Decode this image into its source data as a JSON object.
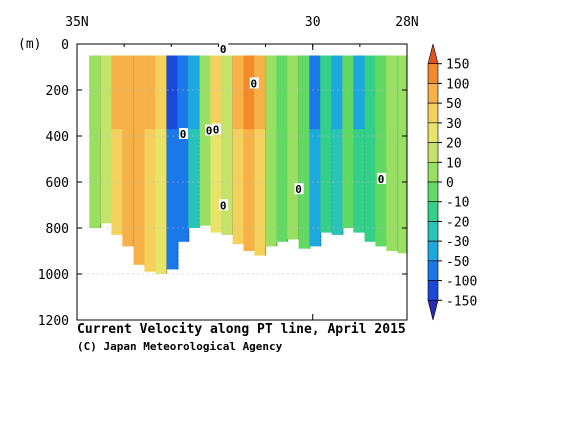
{
  "chart_data": {
    "type": "heatmap",
    "title": "Current Velocity along PT line, April 2015",
    "credit": "(C) Japan Meteorological Agency",
    "ylabel": "(m)",
    "x_ticks": [
      "35N",
      "30",
      "28N"
    ],
    "x_tick_values": [
      35,
      30,
      28
    ],
    "xlim": [
      35,
      28
    ],
    "ylim": [
      0,
      1200
    ],
    "y_ticks": [
      "0",
      "200",
      "400",
      "600",
      "800",
      "1000",
      "1200"
    ],
    "y_tick_values": [
      0,
      200,
      400,
      600,
      800,
      1000,
      1200
    ],
    "contour_zero_label": "0",
    "colorbar": {
      "levels": [
        "150",
        "100",
        "50",
        "30",
        "20",
        "10",
        "0",
        "-10",
        "-20",
        "-30",
        "-50",
        "-100",
        "-150"
      ],
      "level_values": [
        150,
        100,
        50,
        30,
        20,
        10,
        0,
        -10,
        -20,
        -30,
        -50,
        -100,
        -150
      ],
      "colors": [
        "#e2531c",
        "#f28a2c",
        "#f6b248",
        "#f4d15c",
        "#e8e46a",
        "#c5e36a",
        "#98df63",
        "#62d964",
        "#34d08a",
        "#2ac3b8",
        "#1ea8e0",
        "#1a78e8",
        "#1b48d8",
        "#2a2ab8"
      ]
    },
    "columns": [
      {
        "lat": 34.62,
        "depth": 800,
        "v": 5
      },
      {
        "lat": 34.38,
        "depth": 780,
        "v": 15
      },
      {
        "lat": 34.15,
        "depth": 830,
        "v": 35
      },
      {
        "lat": 33.92,
        "depth": 880,
        "v": 55
      },
      {
        "lat": 33.68,
        "depth": 960,
        "v": 55
      },
      {
        "lat": 33.45,
        "depth": 990,
        "v": 40
      },
      {
        "lat": 33.22,
        "depth": 1000,
        "v": 25
      },
      {
        "lat": 32.98,
        "depth": 980,
        "v": -60
      },
      {
        "lat": 32.75,
        "depth": 860,
        "v": -55
      },
      {
        "lat": 32.52,
        "depth": 800,
        "v": -25
      },
      {
        "lat": 32.28,
        "depth": 790,
        "v": 5
      },
      {
        "lat": 32.05,
        "depth": 820,
        "v": 25
      },
      {
        "lat": 31.82,
        "depth": 830,
        "v": 15
      },
      {
        "lat": 31.58,
        "depth": 870,
        "v": 40
      },
      {
        "lat": 31.35,
        "depth": 900,
        "v": 60
      },
      {
        "lat": 31.12,
        "depth": 920,
        "v": 30
      },
      {
        "lat": 30.88,
        "depth": 880,
        "v": 5
      },
      {
        "lat": 30.65,
        "depth": 860,
        "v": -5
      },
      {
        "lat": 30.42,
        "depth": 850,
        "v": 0
      },
      {
        "lat": 30.18,
        "depth": 890,
        "v": -10
      },
      {
        "lat": 29.95,
        "depth": 880,
        "v": -35
      },
      {
        "lat": 29.72,
        "depth": 820,
        "v": -15
      },
      {
        "lat": 29.48,
        "depth": 830,
        "v": -25
      },
      {
        "lat": 29.25,
        "depth": 800,
        "v": -10
      },
      {
        "lat": 29.02,
        "depth": 820,
        "v": -20
      },
      {
        "lat": 28.78,
        "depth": 860,
        "v": -15
      },
      {
        "lat": 28.55,
        "depth": 880,
        "v": -10
      },
      {
        "lat": 28.32,
        "depth": 900,
        "v": 2
      },
      {
        "lat": 28.08,
        "depth": 910,
        "v": 5
      }
    ]
  }
}
